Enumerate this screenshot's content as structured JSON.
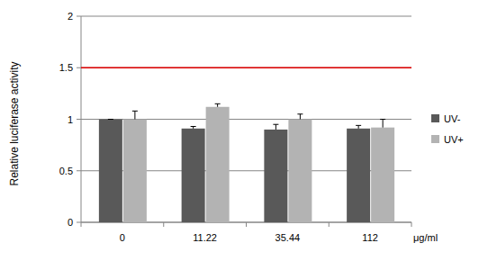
{
  "chart_data": {
    "type": "bar",
    "y_label": "Relative luciferase activity",
    "x_label": "μg/ml",
    "categories": [
      "0",
      "11.22",
      "35.44",
      "112"
    ],
    "series": [
      {
        "name": "UV-",
        "color": "#595959",
        "values": [
          1.0,
          0.91,
          0.9,
          0.91
        ],
        "errors": [
          0,
          0.02,
          0.05,
          0.03
        ]
      },
      {
        "name": "UV+",
        "color": "#b3b3b3",
        "values": [
          1.0,
          1.12,
          1.0,
          0.92
        ],
        "errors": [
          0.08,
          0.03,
          0.05,
          0.08
        ]
      }
    ],
    "threshold": 1.5,
    "ylim": [
      0,
      2
    ],
    "yticks": [
      0,
      0.5,
      1,
      1.5,
      2
    ],
    "grid": true,
    "legend": "right"
  }
}
